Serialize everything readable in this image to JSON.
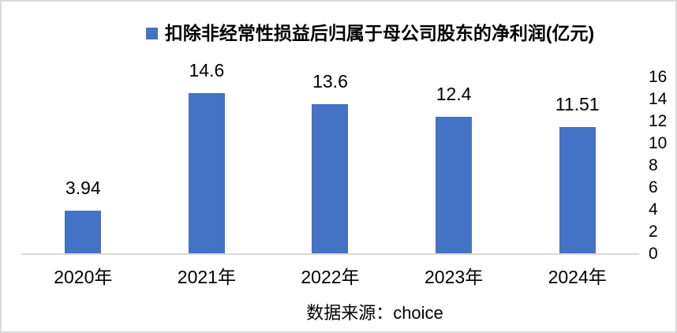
{
  "frame": {
    "background": "#ffffff",
    "border_color": "#d9d9d9"
  },
  "legend": {
    "marker_color": "#4472c4",
    "label": "扣除非经常性损益后归属于母公司股东的净利润(亿元)"
  },
  "source": {
    "text": "数据来源：choice"
  },
  "chart_data": {
    "type": "bar",
    "title": "扣除非经常性损益后归属于母公司股东的净利润(亿元)",
    "categories": [
      "2020年",
      "2021年",
      "2022年",
      "2023年",
      "2024年"
    ],
    "values": [
      3.94,
      14.6,
      13.6,
      12.4,
      11.51
    ],
    "value_labels": [
      "3.94",
      "14.6",
      "13.6",
      "12.4",
      "11.51"
    ],
    "bar_color": "#4472c4",
    "axis_line_color": "#d9d9d9",
    "xlabel": "",
    "ylabel": "",
    "ylim": [
      0,
      16
    ],
    "yticks": [
      0,
      2,
      4,
      6,
      8,
      10,
      12,
      14,
      16
    ],
    "yaxis_side": "right",
    "grid": false,
    "legend_position": "top-center",
    "source": "数据来源：choice"
  }
}
